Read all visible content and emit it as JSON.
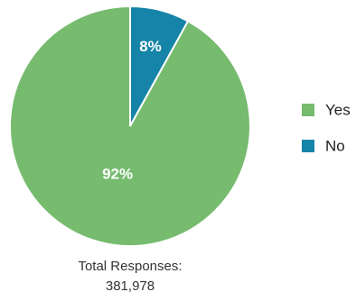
{
  "chart_data": {
    "type": "pie",
    "categories": [
      "Yes",
      "No"
    ],
    "values": [
      92,
      8
    ],
    "value_labels": [
      "92%",
      "8%"
    ],
    "colors": [
      "#76bb6e",
      "#1584a8"
    ],
    "legend_placement": "right",
    "annotation": {
      "line1": "Total Responses:",
      "line2": "381,978"
    }
  }
}
